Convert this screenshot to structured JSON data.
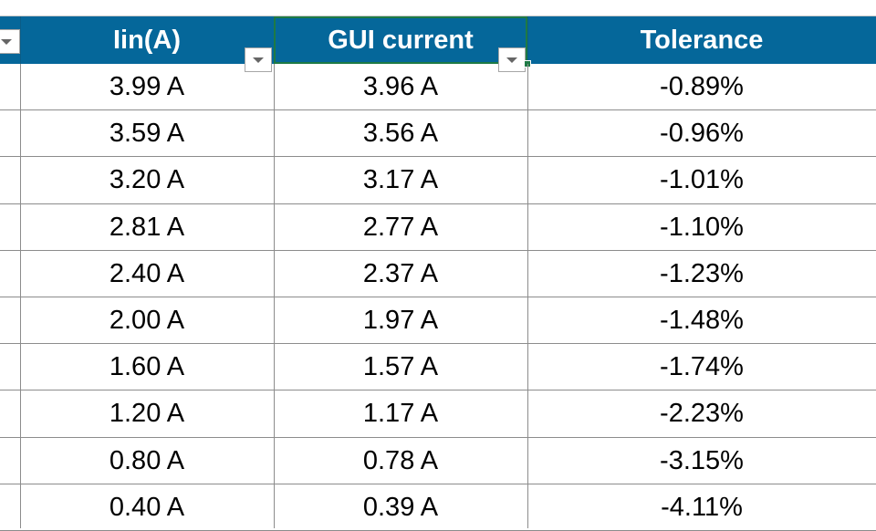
{
  "header": {
    "columns": [
      {
        "label": "",
        "has_filter": true
      },
      {
        "label": "Iin(A)",
        "has_filter": true
      },
      {
        "label": "GUI current",
        "has_filter": true,
        "selected": true
      },
      {
        "label": "Tolerance",
        "has_filter": false
      }
    ]
  },
  "colors": {
    "header_bg": "#05679a",
    "header_text": "#ffffff",
    "selection_border": "#1e7a45",
    "grid_line": "#8c8c8c"
  },
  "icons": {
    "filter": "dropdown-filter-icon",
    "fill_handle": "selection-fill-handle"
  },
  "rows": [
    {
      "iin": "3.99 A",
      "gui": "3.96 A",
      "tol": "-0.89%"
    },
    {
      "iin": "3.59 A",
      "gui": "3.56 A",
      "tol": "-0.96%"
    },
    {
      "iin": "3.20 A",
      "gui": "3.17 A",
      "tol": "-1.01%"
    },
    {
      "iin": "2.81 A",
      "gui": "2.77 A",
      "tol": "-1.10%"
    },
    {
      "iin": "2.40 A",
      "gui": "2.37 A",
      "tol": "-1.23%"
    },
    {
      "iin": "2.00 A",
      "gui": "1.97 A",
      "tol": "-1.48%"
    },
    {
      "iin": "1.60 A",
      "gui": "1.57 A",
      "tol": "-1.74%"
    },
    {
      "iin": "1.20 A",
      "gui": "1.17 A",
      "tol": "-2.23%"
    },
    {
      "iin": "0.80 A",
      "gui": "0.78 A",
      "tol": "-3.15%"
    },
    {
      "iin": "0.40 A",
      "gui": "0.39 A",
      "tol": "-4.11%"
    }
  ]
}
